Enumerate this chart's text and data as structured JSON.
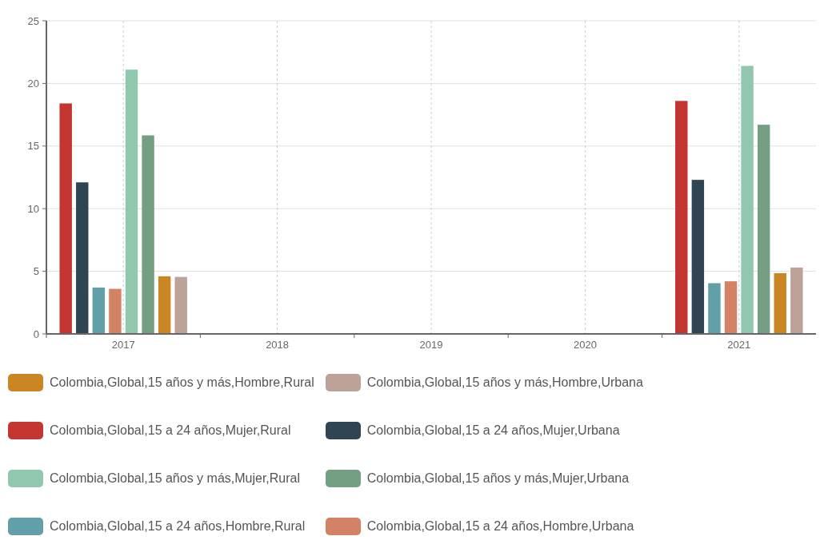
{
  "chart_data": {
    "type": "bar",
    "categories": [
      "2017",
      "2018",
      "2019",
      "2020",
      "2021"
    ],
    "series": [
      {
        "name": "Colombia,Global,15 a 24 años,Mujer,Rural",
        "color": "#c23531",
        "values": [
          18.4,
          null,
          null,
          null,
          18.6
        ]
      },
      {
        "name": "Colombia,Global,15 a 24 años,Mujer,Urbana",
        "color": "#2f4554",
        "values": [
          12.1,
          null,
          null,
          null,
          12.3
        ]
      },
      {
        "name": "Colombia,Global,15 a 24 años,Hombre,Rural",
        "color": "#61a0a8",
        "values": [
          3.7,
          null,
          null,
          null,
          4.05
        ]
      },
      {
        "name": "Colombia,Global,15 a 24 años,Hombre,Urbana",
        "color": "#d48265",
        "values": [
          3.6,
          null,
          null,
          null,
          4.2
        ]
      },
      {
        "name": "Colombia,Global,15 años y más,Mujer,Rural",
        "color": "#91c7ae",
        "values": [
          21.1,
          null,
          null,
          null,
          21.4
        ]
      },
      {
        "name": "Colombia,Global,15 años y más,Mujer,Urbana",
        "color": "#749f83",
        "values": [
          15.85,
          null,
          null,
          null,
          16.7
        ]
      },
      {
        "name": "Colombia,Global,15 años y más,Hombre,Rural",
        "color": "#ca8622",
        "values": [
          4.6,
          null,
          null,
          null,
          4.85
        ]
      },
      {
        "name": "Colombia,Global,15 años y más,Hombre,Urbana",
        "color": "#bda29a",
        "values": [
          4.55,
          null,
          null,
          null,
          5.3
        ]
      }
    ],
    "ylim": [
      0,
      25
    ],
    "yticks": [
      0,
      5,
      10,
      15,
      20,
      25
    ],
    "grid": true,
    "legend": "bottom"
  }
}
